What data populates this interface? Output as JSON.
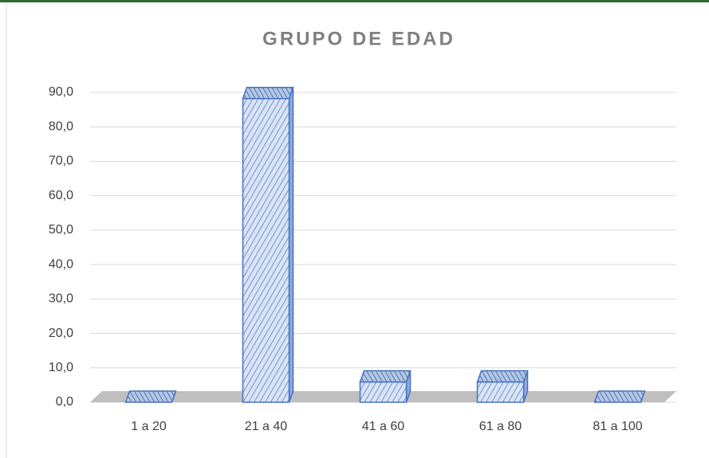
{
  "chart_data": {
    "type": "bar",
    "title": "GRUPO DE EDAD",
    "categories": [
      "1 a 20",
      "21 a 40",
      "41 a 60",
      "61 a 80",
      "81 a 100"
    ],
    "values": [
      0,
      88.2,
      5.9,
      5.9,
      0
    ],
    "color": "#4472c4",
    "ylim": [
      0,
      90
    ],
    "yticks": [
      {
        "value": 0,
        "label": "0,0"
      },
      {
        "value": 10,
        "label": "10,0"
      },
      {
        "value": 20,
        "label": "20,0"
      },
      {
        "value": 30,
        "label": "30,0"
      },
      {
        "value": 40,
        "label": "40,0"
      },
      {
        "value": 50,
        "label": "50,0"
      },
      {
        "value": 60,
        "label": "60,0"
      },
      {
        "value": 70,
        "label": "70,0"
      },
      {
        "value": 80,
        "label": "80,0"
      },
      {
        "value": 90,
        "label": "90,0"
      }
    ],
    "grid": true
  }
}
